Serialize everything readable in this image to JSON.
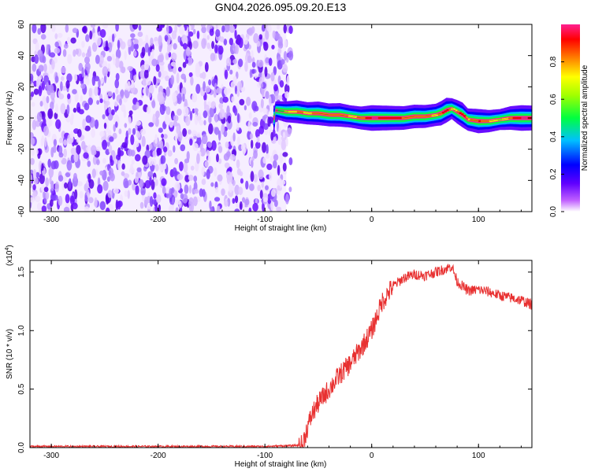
{
  "figure": {
    "title": "GN04.2026.095.09.20.E13"
  },
  "chart_data": [
    {
      "type": "heatmap",
      "name": "spectrogram",
      "xlabel": "Height of straight line (km)",
      "ylabel": "Frequency (Hz)",
      "xlim": [
        -320,
        150
      ],
      "ylim": [
        -60,
        60
      ],
      "xticks": [
        -300,
        -200,
        -100,
        0,
        100
      ],
      "xtick_labels": [
        "-300",
        "-200",
        "-100",
        "0",
        "100"
      ],
      "yticks": [
        -60,
        -40,
        -20,
        0,
        20,
        40,
        60
      ],
      "ytick_labels": [
        "-60",
        "-40",
        "-20",
        "0",
        "20",
        "40",
        "60"
      ],
      "noise_region_km": [
        -320,
        -80
      ],
      "ridge": {
        "x": [
          -90,
          -80,
          -70,
          -60,
          -50,
          -40,
          -30,
          -20,
          -10,
          0,
          10,
          20,
          30,
          40,
          50,
          60,
          65,
          70,
          75,
          80,
          85,
          90,
          100,
          110,
          120,
          130,
          140,
          150
        ],
        "freq_hz": [
          5,
          4,
          4,
          3,
          3,
          2,
          2,
          1,
          0,
          0,
          0,
          0,
          0,
          1,
          1,
          2,
          3,
          5,
          6,
          4,
          2,
          -1,
          -2,
          -2,
          -1,
          0,
          0,
          0
        ],
        "amplitude": [
          0.35,
          0.6,
          0.75,
          0.7,
          0.8,
          0.75,
          0.8,
          0.7,
          0.75,
          0.95,
          0.9,
          0.85,
          0.8,
          0.8,
          0.75,
          0.7,
          0.85,
          0.9,
          0.6,
          0.8,
          0.9,
          0.7,
          0.85,
          0.7,
          0.6,
          0.8,
          0.95,
          0.9
        ]
      },
      "colorbar": {
        "label": "Normalized spectral amplitude",
        "range": [
          0,
          1
        ],
        "ticks": [
          0.0,
          0.2,
          0.4,
          0.6,
          0.8
        ],
        "tick_labels": [
          "0.0",
          "0.2",
          "0.4",
          "0.6",
          "0.8"
        ],
        "colors": [
          "#ffffff",
          "#a020f0",
          "#0000ff",
          "#00d0ff",
          "#00ff40",
          "#ffff00",
          "#ff8000",
          "#ff0000",
          "#ff2090"
        ]
      }
    },
    {
      "type": "line",
      "name": "snr",
      "xlabel": "Height of straight line (km)",
      "ylabel": "SNR (10 * v/v)",
      "multiplier_label": "(x10",
      "multiplier_exponent": "4",
      "multiplier_close": ")",
      "xlim": [
        -320,
        150
      ],
      "ylim": [
        0,
        1.6
      ],
      "xticks": [
        -300,
        -200,
        -100,
        0,
        100
      ],
      "xtick_labels": [
        "-300",
        "-200",
        "-100",
        "0",
        "100"
      ],
      "yticks": [
        0.0,
        0.5,
        1.0,
        1.5
      ],
      "ytick_labels": [
        "0.0",
        "0.5",
        "1.0",
        "1.5"
      ],
      "series": [
        {
          "name": "SNR",
          "color": "#e83030",
          "x": [
            -320,
            -100,
            -65,
            -60,
            -55,
            -50,
            -40,
            -30,
            -20,
            -10,
            0,
            10,
            20,
            30,
            40,
            50,
            60,
            70,
            75,
            80,
            90,
            100,
            110,
            120,
            130,
            140,
            150
          ],
          "y": [
            0.01,
            0.01,
            0.02,
            0.18,
            0.3,
            0.38,
            0.5,
            0.62,
            0.72,
            0.85,
            1.0,
            1.25,
            1.38,
            1.45,
            1.48,
            1.47,
            1.5,
            1.53,
            1.55,
            1.42,
            1.34,
            1.35,
            1.33,
            1.3,
            1.28,
            1.26,
            1.22
          ]
        }
      ]
    }
  ]
}
